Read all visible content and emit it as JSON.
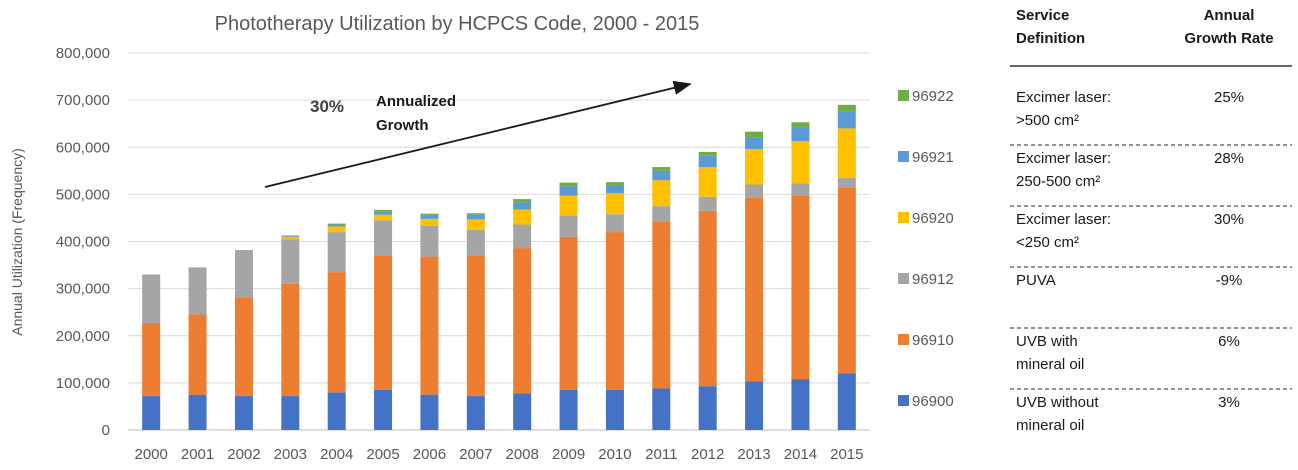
{
  "chart_data": {
    "type": "bar",
    "stacked": true,
    "title": "Phototherapy Utilization by HCPCS Code, 2000 - 2015",
    "ylabel": "Annual Utilization (Frequency)",
    "xlabel": "",
    "ylim": [
      0,
      800000
    ],
    "yticks": [
      0,
      100000,
      200000,
      300000,
      400000,
      500000,
      600000,
      700000,
      800000
    ],
    "ytick_labels": [
      "0",
      "100,000",
      "200,000",
      "300,000",
      "400,000",
      "500,000",
      "600,000",
      "700,000",
      "800,000"
    ],
    "grid": true,
    "categories": [
      "2000",
      "2001",
      "2002",
      "2003",
      "2004",
      "2005",
      "2006",
      "2007",
      "2008",
      "2009",
      "2010",
      "2011",
      "2012",
      "2013",
      "2014",
      "2015"
    ],
    "series": [
      {
        "name": "96900",
        "color": "#4472C4",
        "values": [
          72000,
          75000,
          72000,
          72000,
          80000,
          85000,
          75000,
          72000,
          78000,
          85000,
          85000,
          88000,
          93000,
          103000,
          108000,
          120000
        ]
      },
      {
        "name": "96910",
        "color": "#ED7D31",
        "values": [
          155000,
          170000,
          210000,
          238000,
          255000,
          285000,
          293000,
          298000,
          308000,
          325000,
          335000,
          355000,
          372000,
          390000,
          390000,
          395000
        ]
      },
      {
        "name": "96912",
        "color": "#A5A5A5",
        "values": [
          103000,
          100000,
          100000,
          95000,
          85000,
          75000,
          65000,
          55000,
          50000,
          45000,
          38000,
          32000,
          30000,
          28000,
          25000,
          20000
        ]
      },
      {
        "name": "96920",
        "color": "#FFC000",
        "values": [
          0,
          0,
          0,
          5000,
          12000,
          12000,
          15000,
          22000,
          32000,
          42000,
          45000,
          55000,
          63000,
          75000,
          90000,
          105000
        ]
      },
      {
        "name": "96921",
        "color": "#5B9BD5",
        "values": [
          0,
          0,
          0,
          2000,
          4000,
          7000,
          8000,
          10000,
          15000,
          20000,
          17000,
          20000,
          25000,
          25000,
          28000,
          35000
        ]
      },
      {
        "name": "96922",
        "color": "#70AD47",
        "values": [
          0,
          0,
          0,
          1000,
          2000,
          3000,
          3000,
          3000,
          7000,
          8000,
          6000,
          8000,
          7000,
          12000,
          12000,
          15000
        ]
      }
    ],
    "annotation": {
      "percent": "30%",
      "text_line1": "Annualized",
      "text_line2": "Growth"
    },
    "legend_table": {
      "header_definition_line1": "Service",
      "header_definition_line2": "Definition",
      "header_rate_line1": "Annual",
      "header_rate_line2": "Growth Rate",
      "rows": [
        {
          "code": "96922",
          "color": "#70AD47",
          "def_line1": "Excimer laser:",
          "def_line2": ">500 cm²",
          "rate": "25%"
        },
        {
          "code": "96921",
          "color": "#5B9BD5",
          "def_line1": "Excimer laser:",
          "def_line2": "250-500 cm²",
          "rate": "28%"
        },
        {
          "code": "96920",
          "color": "#FFC000",
          "def_line1": "Excimer laser:",
          "def_line2": "<250 cm²",
          "rate": "30%"
        },
        {
          "code": "96912",
          "color": "#A5A5A5",
          "def_line1": "PUVA",
          "def_line2": "",
          "rate": "-9%"
        },
        {
          "code": "96910",
          "color": "#ED7D31",
          "def_line1": "UVB with",
          "def_line2": "mineral oil",
          "rate": "6%"
        },
        {
          "code": "96900",
          "color": "#4472C4",
          "def_line1": "UVB without",
          "def_line2": "mineral oil",
          "rate": "3%"
        }
      ]
    }
  }
}
